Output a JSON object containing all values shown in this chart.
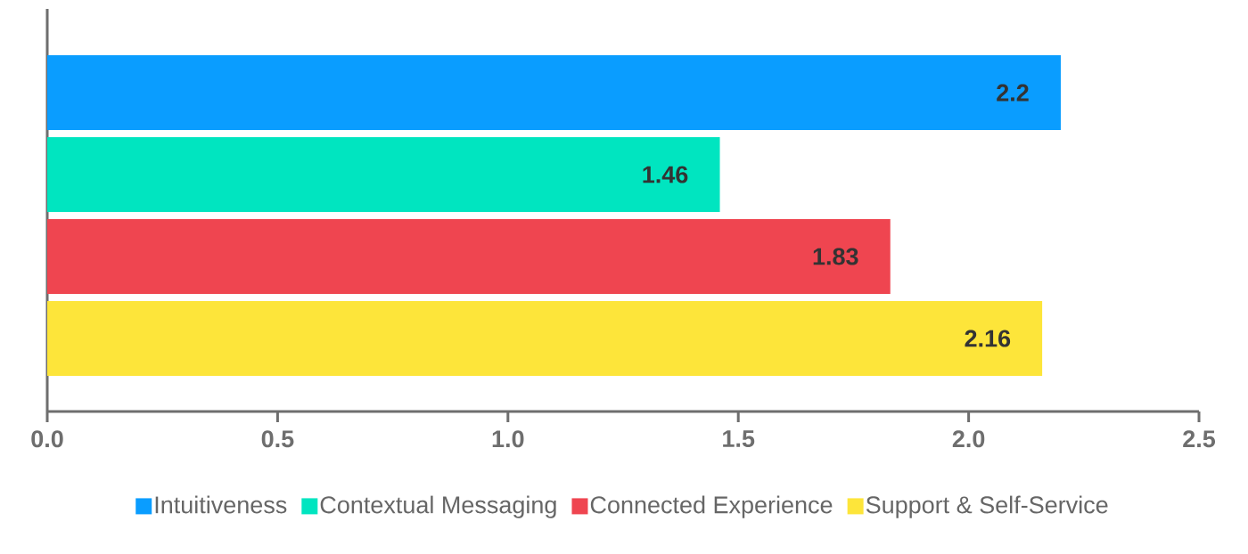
{
  "chart_data": {
    "type": "bar",
    "orientation": "horizontal",
    "categories": [
      null
    ],
    "series": [
      {
        "name": "Intuitiveness",
        "color": "#0a9dff",
        "values": [
          2.2
        ]
      },
      {
        "name": "Contextual Messaging",
        "color": "#00e5c0",
        "values": [
          1.46
        ]
      },
      {
        "name": "Connected Experience",
        "color": "#ef4550",
        "values": [
          1.83
        ]
      },
      {
        "name": "Support & Self-Service",
        "color": "#fde53a",
        "values": [
          2.16
        ]
      }
    ],
    "xlim": [
      0,
      2.5
    ],
    "xticks": [
      {
        "value": 0,
        "label": "0.0"
      },
      0.5,
      {
        "value": 1,
        "label": "1.0"
      },
      1.5,
      {
        "value": 2,
        "label": "2.0"
      },
      2.5
    ],
    "data_labels": true,
    "grid": false,
    "legend": "bottom"
  }
}
